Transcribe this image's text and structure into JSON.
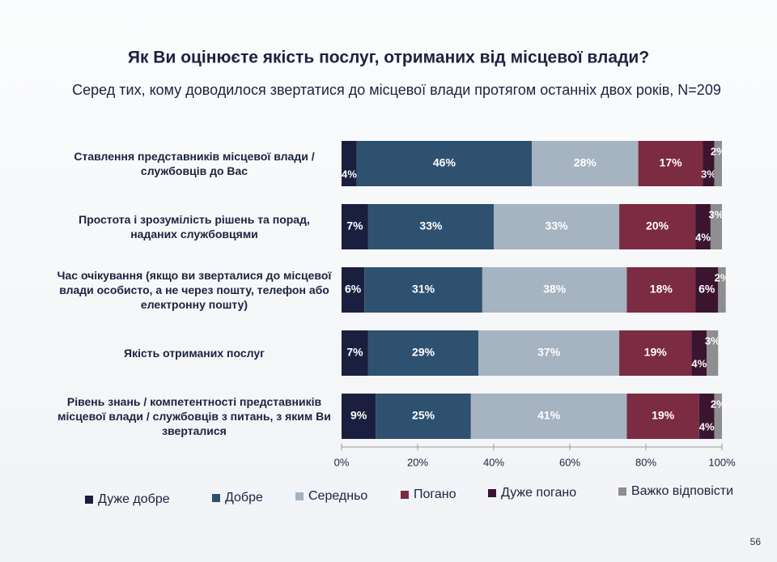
{
  "chart_data": {
    "type": "stacked-bar-horizontal",
    "title": "Як Ви оцінюєте якість послуг, отриманих від місцевої влади?",
    "subtitle": "Серед тих, кому доводилося звертатися до місцевої влади протягом останніх двох років, N=209",
    "categories": [
      "Ставлення представників місцевої влади / службовців до Вас",
      "Простота і зрозумілість рішень та порад, наданих службовцями",
      "Час очікування (якщо ви зверталися до місцевої влади особисто, а не через пошту, телефон або електронну пошту)",
      "Якість отриманих послуг",
      "Рівень знань / компетентності представників місцевої влади / службовців з питань, з яким Ви зверталися"
    ],
    "series": [
      {
        "name": "Дуже добре",
        "color": "#1b1f3f",
        "values": [
          4,
          7,
          6,
          7,
          9
        ],
        "value_labels": [
          "4%",
          "7%",
          "6%",
          "7%",
          "9%"
        ]
      },
      {
        "name": "Добре",
        "color": "#2f5170",
        "values": [
          46,
          33,
          31,
          29,
          25
        ],
        "value_labels": [
          "46%",
          "33%",
          "31%",
          "29%",
          "25%"
        ]
      },
      {
        "name": "Середньо",
        "color": "#a6b3c1",
        "values": [
          28,
          33,
          38,
          37,
          41
        ],
        "value_labels": [
          "28%",
          "33%",
          "38%",
          "37%",
          "41%"
        ]
      },
      {
        "name": "Погано",
        "color": "#7b2b42",
        "values": [
          17,
          20,
          18,
          19,
          19
        ],
        "value_labels": [
          "17%",
          "20%",
          "18%",
          "19%",
          "19%"
        ]
      },
      {
        "name": "Дуже погано",
        "color": "#3b1530",
        "values": [
          3,
          4,
          6,
          4,
          4
        ],
        "value_labels": [
          "3%",
          "4%",
          "6%",
          "4%",
          "4%"
        ]
      },
      {
        "name": "Важко відповісти",
        "color": "#8e8e90",
        "values": [
          2,
          3,
          2,
          3,
          2
        ],
        "value_labels": [
          "2%",
          "3%",
          "2%",
          "3%",
          "2%"
        ]
      }
    ],
    "xlim": [
      0,
      100
    ],
    "xticks": [
      {
        "value": 0,
        "label": "0%"
      },
      {
        "value": 20,
        "label": "20%"
      },
      {
        "value": 40,
        "label": "40%"
      },
      {
        "value": 60,
        "label": "60%"
      },
      {
        "value": 80,
        "label": "80%"
      },
      {
        "value": 100,
        "label": "100%"
      }
    ],
    "legend": "bottom",
    "page_number": "56"
  }
}
